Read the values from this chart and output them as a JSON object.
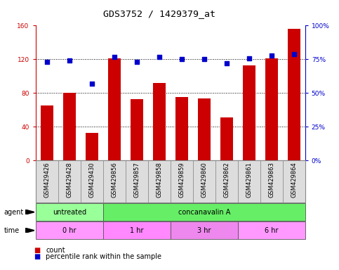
{
  "title": "GDS3752 / 1429379_at",
  "samples": [
    "GSM429426",
    "GSM429428",
    "GSM429430",
    "GSM429856",
    "GSM429857",
    "GSM429858",
    "GSM429859",
    "GSM429860",
    "GSM429862",
    "GSM429861",
    "GSM429863",
    "GSM429864"
  ],
  "count_values": [
    65,
    80,
    33,
    121,
    73,
    92,
    75,
    74,
    51,
    113,
    121,
    156
  ],
  "percentile_values": [
    73,
    74,
    57,
    77,
    73,
    77,
    75,
    75,
    72,
    76,
    78,
    79
  ],
  "ylim_left": [
    0,
    160
  ],
  "ylim_right": [
    0,
    100
  ],
  "yticks_left": [
    0,
    40,
    80,
    120,
    160
  ],
  "yticks_right": [
    0,
    25,
    50,
    75,
    100
  ],
  "ytick_labels_left": [
    "0",
    "40",
    "80",
    "120",
    "160"
  ],
  "ytick_labels_right": [
    "0%",
    "25%",
    "50%",
    "75%",
    "100%"
  ],
  "bar_color": "#cc0000",
  "dot_color": "#0000cc",
  "agent_groups": [
    {
      "label": "untreated",
      "start": 0,
      "end": 3,
      "color": "#99ff99"
    },
    {
      "label": "concanavalin A",
      "start": 3,
      "end": 12,
      "color": "#66ee66"
    }
  ],
  "time_groups": [
    {
      "label": "0 hr",
      "start": 0,
      "end": 3,
      "color": "#ff99ff"
    },
    {
      "label": "1 hr",
      "start": 3,
      "end": 6,
      "color": "#ff88ff"
    },
    {
      "label": "3 hr",
      "start": 6,
      "end": 9,
      "color": "#ee88ee"
    },
    {
      "label": "6 hr",
      "start": 9,
      "end": 12,
      "color": "#ff99ff"
    }
  ],
  "legend_count_color": "#cc0000",
  "legend_dot_color": "#0000cc",
  "grid_color": "#000000",
  "background_color": "#ffffff",
  "plot_bg_color": "#ffffff",
  "title_fontsize": 9.5,
  "tick_fontsize": 6.5,
  "label_fontsize": 7.5,
  "left_tick_color": "#cc0000",
  "right_tick_color": "#0000cc",
  "xticklabel_bg": "#dddddd"
}
